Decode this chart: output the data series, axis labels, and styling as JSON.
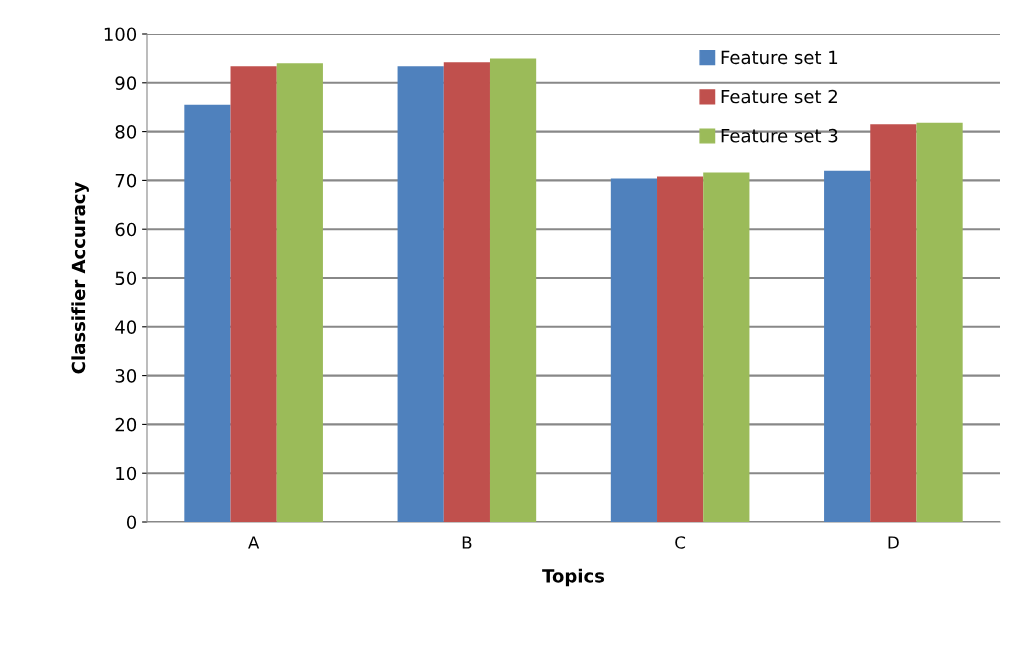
{
  "chart_data": {
    "type": "bar",
    "xlabel": "Topics",
    "ylabel": "Classifier Accuracy",
    "categories": [
      "A",
      "B",
      "C",
      "D"
    ],
    "series": [
      {
        "name": "Feature set 1",
        "color": "#4f81bd",
        "values": [
          85.5,
          93.4,
          70.4,
          72.0
        ]
      },
      {
        "name": "Feature set 2",
        "color": "#c0504d",
        "values": [
          93.4,
          94.2,
          70.8,
          81.5
        ]
      },
      {
        "name": "Feature set 3",
        "color": "#9bbb59",
        "values": [
          94.0,
          95.0,
          71.6,
          81.8
        ]
      }
    ],
    "ylim": [
      0,
      100
    ],
    "yticks": [
      0,
      10,
      20,
      30,
      40,
      50,
      60,
      70,
      80,
      90,
      100
    ],
    "grid": "y",
    "legend": "top right"
  }
}
